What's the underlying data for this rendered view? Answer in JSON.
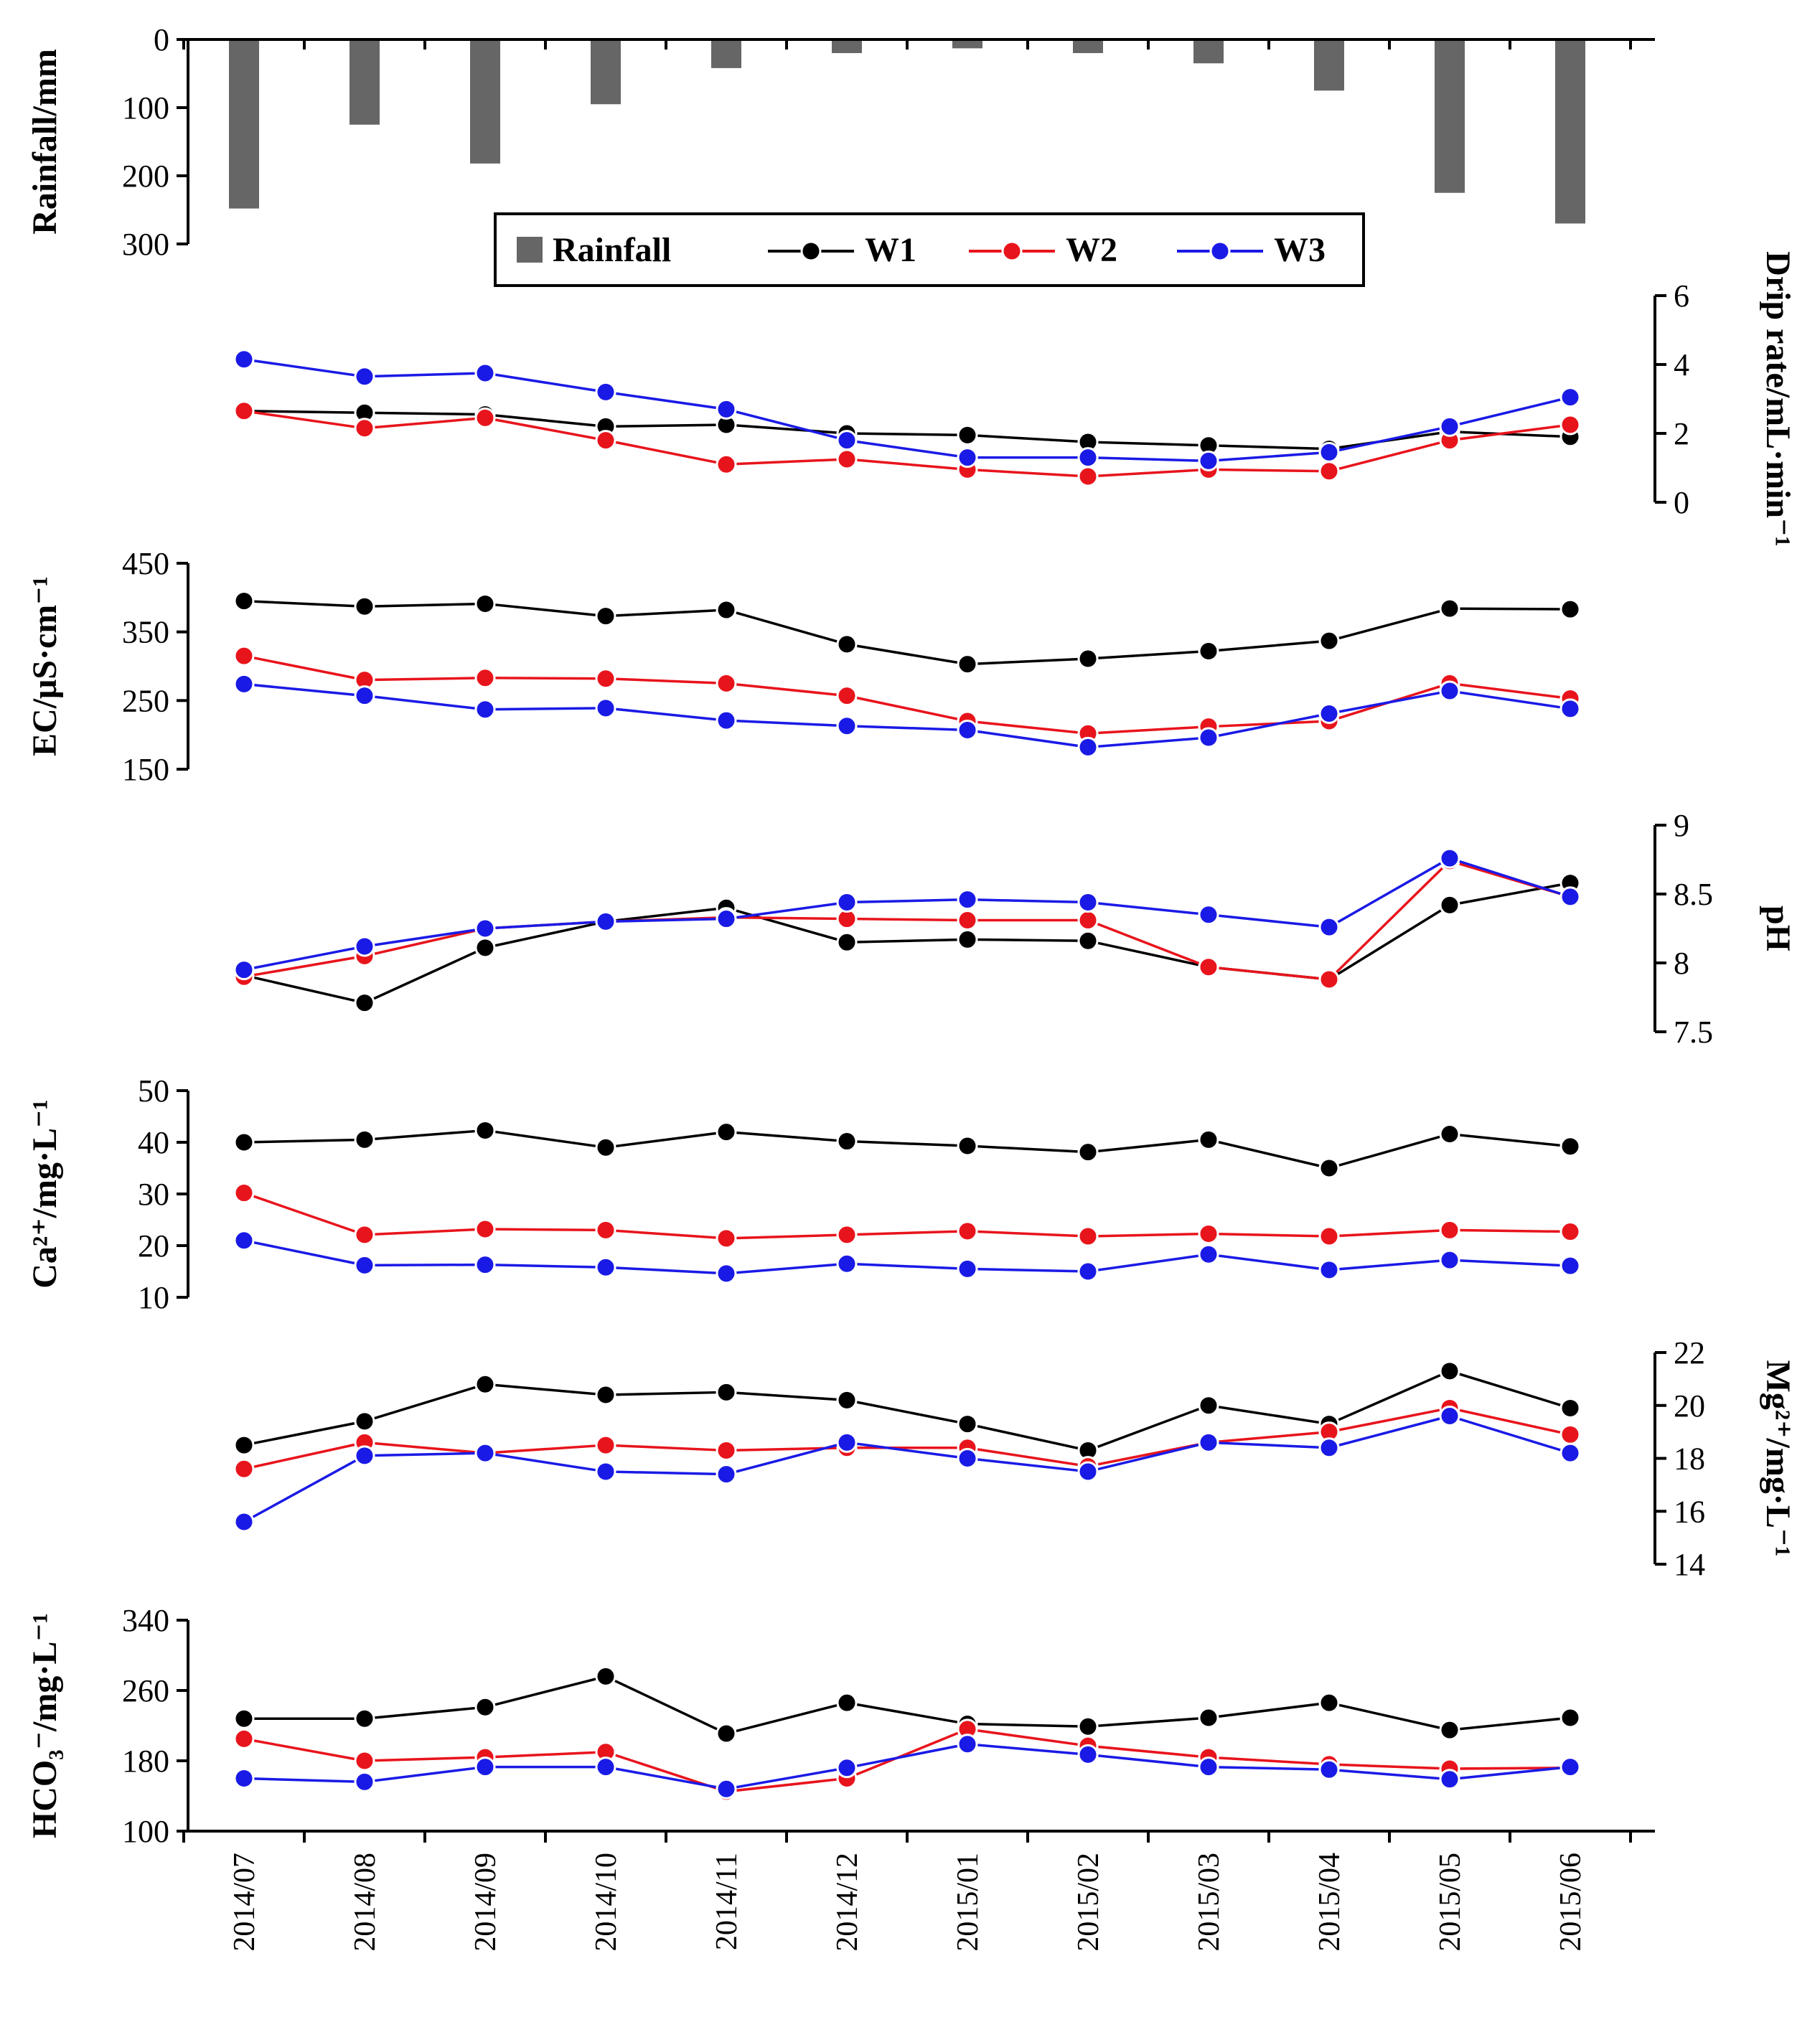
{
  "chart_data": {
    "type": "line",
    "categories": [
      "2014/07",
      "2014/08",
      "2014/09",
      "2014/10",
      "2014/11",
      "2014/12",
      "2015/01",
      "2015/02",
      "2015/03",
      "2015/04",
      "2015/05",
      "2015/06"
    ],
    "colors": {
      "W1": "#000000",
      "W2": "#e8141c",
      "W3": "#1a1ae6",
      "Rainfall": "#666666"
    },
    "legend": {
      "rainfall": "Rainfall",
      "w1": "W1",
      "w2": "W2",
      "w3": "W3"
    },
    "panels": [
      {
        "id": "rainfall",
        "type": "bar",
        "inverted": true,
        "axis": "left",
        "ylabel": "Rainfall/mm",
        "ylim": [
          0,
          300
        ],
        "ticks": [
          "0",
          "100",
          "200",
          "300"
        ],
        "series": [
          {
            "name": "Rainfall",
            "values": [
              248,
              125,
              182,
              95,
              42,
              20,
              13,
              20,
              35,
              75,
              225,
              270
            ]
          }
        ]
      },
      {
        "id": "drip",
        "type": "line",
        "axis": "right",
        "ylabel": "Drip rate/mL·min⁻¹",
        "ylim": [
          0,
          6
        ],
        "ticks": [
          "0",
          "2",
          "4",
          "6"
        ],
        "series": [
          {
            "name": "W1",
            "values": [
              2.65,
              2.6,
              2.55,
              2.2,
              2.25,
              2.0,
              1.95,
              1.75,
              1.65,
              1.55,
              2.05,
              1.9
            ]
          },
          {
            "name": "W2",
            "values": [
              2.65,
              2.15,
              2.45,
              1.8,
              1.1,
              1.25,
              0.95,
              0.75,
              0.95,
              0.9,
              1.8,
              2.25
            ]
          },
          {
            "name": "W3",
            "values": [
              4.15,
              3.65,
              3.75,
              3.2,
              2.7,
              1.8,
              1.3,
              1.3,
              1.2,
              1.45,
              2.2,
              3.05
            ]
          }
        ]
      },
      {
        "id": "ec",
        "type": "line",
        "axis": "left",
        "ylabel": "EC/μS·cm⁻¹",
        "ylim": [
          150,
          450
        ],
        "ticks": [
          "150",
          "250",
          "350",
          "450"
        ],
        "series": [
          {
            "name": "W1",
            "values": [
              395,
              387,
              391,
              373,
              382,
              332,
              303,
              311,
              322,
              337,
              384,
              383
            ]
          },
          {
            "name": "W2",
            "values": [
              315,
              280,
              283,
              282,
              275,
              257,
              220,
              202,
              212,
              220,
              275,
              253
            ]
          },
          {
            "name": "W3",
            "values": [
              274,
              257,
              237,
              239,
              221,
              213,
              207,
              182,
              196,
              231,
              264,
              238
            ]
          }
        ]
      },
      {
        "id": "ph",
        "type": "line",
        "axis": "right",
        "ylabel": "pH",
        "ylim": [
          7.5,
          9
        ],
        "ticks": [
          "7.5",
          "8",
          "8.5",
          "9"
        ],
        "series": [
          {
            "name": "W1",
            "values": [
              7.91,
              7.71,
              8.11,
              8.3,
              8.4,
              8.15,
              8.17,
              8.16,
              7.97,
              7.88,
              8.42,
              8.58
            ]
          },
          {
            "name": "W2",
            "values": [
              7.9,
              8.05,
              8.25,
              8.3,
              8.33,
              8.32,
              8.31,
              8.31,
              7.97,
              7.88,
              8.74,
              8.48
            ]
          },
          {
            "name": "W3",
            "values": [
              7.95,
              8.12,
              8.25,
              8.3,
              8.32,
              8.44,
              8.46,
              8.44,
              8.35,
              8.26,
              8.76,
              8.48
            ]
          }
        ]
      },
      {
        "id": "ca",
        "type": "line",
        "axis": "left",
        "ylabel": "Ca²⁺/mg·L⁻¹",
        "ylim": [
          10,
          50
        ],
        "ticks": [
          "10",
          "20",
          "30",
          "40",
          "50"
        ],
        "series": [
          {
            "name": "W1",
            "values": [
              40,
              40.5,
              42.3,
              39,
              42,
              40.2,
              39.3,
              38.1,
              40.5,
              35,
              41.6,
              39.2
            ]
          },
          {
            "name": "W2",
            "values": [
              30.2,
              22.1,
              23.2,
              23,
              21.4,
              22.1,
              22.8,
              21.8,
              22.3,
              21.8,
              23,
              22.7
            ]
          },
          {
            "name": "W3",
            "values": [
              21,
              16.2,
              16.3,
              15.8,
              14.6,
              16.5,
              15.5,
              15,
              18.3,
              15.3,
              17.2,
              16.1
            ]
          }
        ]
      },
      {
        "id": "mg",
        "type": "line",
        "axis": "right",
        "ylabel": "Mg²⁺/mg·L⁻¹",
        "ylim": [
          14,
          22
        ],
        "ticks": [
          "14",
          "16",
          "18",
          "20",
          "22"
        ],
        "series": [
          {
            "name": "W1",
            "values": [
              18.5,
              19.4,
              20.8,
              20.4,
              20.5,
              20.2,
              19.3,
              18.3,
              20,
              19.3,
              21.3,
              19.9
            ]
          },
          {
            "name": "W2",
            "values": [
              17.6,
              18.6,
              18.2,
              18.5,
              18.3,
              18.4,
              18.4,
              17.7,
              18.6,
              19,
              19.9,
              18.9
            ]
          },
          {
            "name": "W3",
            "values": [
              15.6,
              18.1,
              18.2,
              17.5,
              17.4,
              18.6,
              18,
              17.5,
              18.6,
              18.4,
              19.6,
              18.2
            ]
          }
        ]
      },
      {
        "id": "hco3",
        "type": "line",
        "axis": "left",
        "ylabel": "HCO₃⁻/mg·L⁻¹",
        "ylim": [
          100,
          340
        ],
        "ticks": [
          "100",
          "180",
          "260",
          "340"
        ],
        "series": [
          {
            "name": "W1",
            "values": [
              228,
              228,
              241,
              276,
              211,
              246,
              222,
              219,
              229,
              246,
              215,
              229
            ]
          },
          {
            "name": "W2",
            "values": [
              205,
              180,
              184,
              190,
              145,
              160,
              216,
              197,
              184,
              176,
              171,
              172
            ]
          },
          {
            "name": "W3",
            "values": [
              160,
              156,
              173,
              173,
              148,
              172,
              199,
              187,
              173,
              170,
              159,
              173
            ]
          }
        ]
      }
    ]
  }
}
